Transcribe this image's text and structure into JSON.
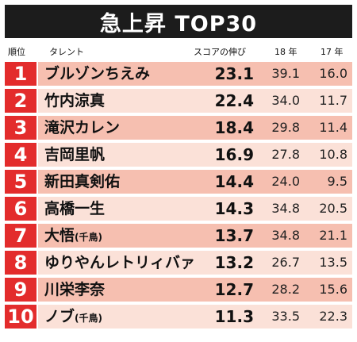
{
  "title": "急上昇 TOP30",
  "headers": {
    "rank": "順位",
    "name": "タレント",
    "growth": "スコアの伸び",
    "y18": "18 年",
    "y17": "17 年"
  },
  "colors": {
    "rank_red": "#e32c2c",
    "row_dark": "#f6bfb0",
    "row_light": "#fbe1d8",
    "title_bg": "#1c1c1c"
  },
  "rows": [
    {
      "rank": "1",
      "name": "ブルゾンちえみ",
      "sub": "",
      "growth": "23.1",
      "y18": "39.1",
      "y17": "16.0"
    },
    {
      "rank": "2",
      "name": "竹内涼真",
      "sub": "",
      "growth": "22.4",
      "y18": "34.0",
      "y17": "11.7"
    },
    {
      "rank": "3",
      "name": "滝沢カレン",
      "sub": "",
      "growth": "18.4",
      "y18": "29.8",
      "y17": "11.4"
    },
    {
      "rank": "4",
      "name": "吉岡里帆",
      "sub": "",
      "growth": "16.9",
      "y18": "27.8",
      "y17": "10.8"
    },
    {
      "rank": "5",
      "name": "新田真剣佑",
      "sub": "",
      "growth": "14.4",
      "y18": "24.0",
      "y17": "9.5"
    },
    {
      "rank": "6",
      "name": "高橋一生",
      "sub": "",
      "growth": "14.3",
      "y18": "34.8",
      "y17": "20.5"
    },
    {
      "rank": "7",
      "name": "大悟",
      "sub": "(千鳥)",
      "growth": "13.7",
      "y18": "34.8",
      "y17": "21.1"
    },
    {
      "rank": "8",
      "name": "ゆりやんレトリィバァ",
      "sub": "",
      "growth": "13.2",
      "y18": "26.7",
      "y17": "13.5"
    },
    {
      "rank": "9",
      "name": "川栄李奈",
      "sub": "",
      "growth": "12.7",
      "y18": "28.2",
      "y17": "15.6"
    },
    {
      "rank": "10",
      "name": "ノブ",
      "sub": "(千鳥)",
      "growth": "11.3",
      "y18": "33.5",
      "y17": "22.3"
    }
  ]
}
